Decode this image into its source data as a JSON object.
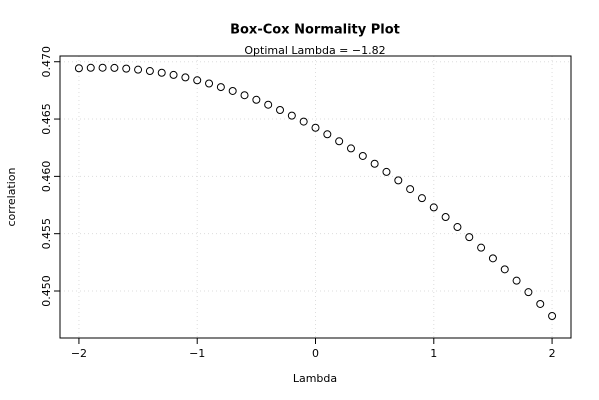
{
  "chart_data": {
    "type": "scatter",
    "title": "Box-Cox Normality Plot",
    "subtitle": "Optimal Lambda = −1.82",
    "x_label": "Lambda",
    "y_label": "correlation",
    "x": [
      -2,
      -1.9,
      -1.8,
      -1.7,
      -1.6,
      -1.5,
      -1.4,
      -1.3,
      -1.2,
      -1.1,
      -1,
      -0.9,
      -0.8,
      -0.7,
      -0.6,
      -0.5,
      -0.4,
      -0.3,
      -0.2,
      -0.1,
      0,
      0.1,
      0.2,
      0.3,
      0.4,
      0.5,
      0.6,
      0.7,
      0.8,
      0.9,
      1,
      1.1,
      1.2,
      1.3,
      1.4,
      1.5,
      1.6,
      1.7,
      1.8,
      1.9,
      2
    ],
    "values": [
      0.46943,
      0.46947,
      0.46948,
      0.46946,
      0.4694,
      0.46931,
      0.46919,
      0.46904,
      0.46885,
      0.46863,
      0.46838,
      0.4681,
      0.46779,
      0.46745,
      0.46708,
      0.46668,
      0.46625,
      0.46579,
      0.4653,
      0.46478,
      0.46424,
      0.46367,
      0.46306,
      0.46244,
      0.46178,
      0.4611,
      0.46039,
      0.45965,
      0.45889,
      0.4581,
      0.45729,
      0.45645,
      0.45558,
      0.4547,
      0.45378,
      0.45285,
      0.45189,
      0.4509,
      0.4499,
      0.44887,
      0.44782
    ],
    "color": "#000000",
    "xlim": [
      -2.16,
      2.16
    ],
    "xticks": [
      {
        "value": -2,
        "label": "−2"
      },
      {
        "value": -1,
        "label": "−1"
      },
      0,
      1,
      2
    ],
    "ylim": [
      0.4459,
      0.4705
    ],
    "yticks": [
      {
        "value": 0.45,
        "label": "0.450"
      },
      0.455,
      {
        "value": 0.46,
        "label": "0.460"
      },
      0.465,
      {
        "value": 0.47,
        "label": "0.470"
      }
    ],
    "grid": true
  }
}
